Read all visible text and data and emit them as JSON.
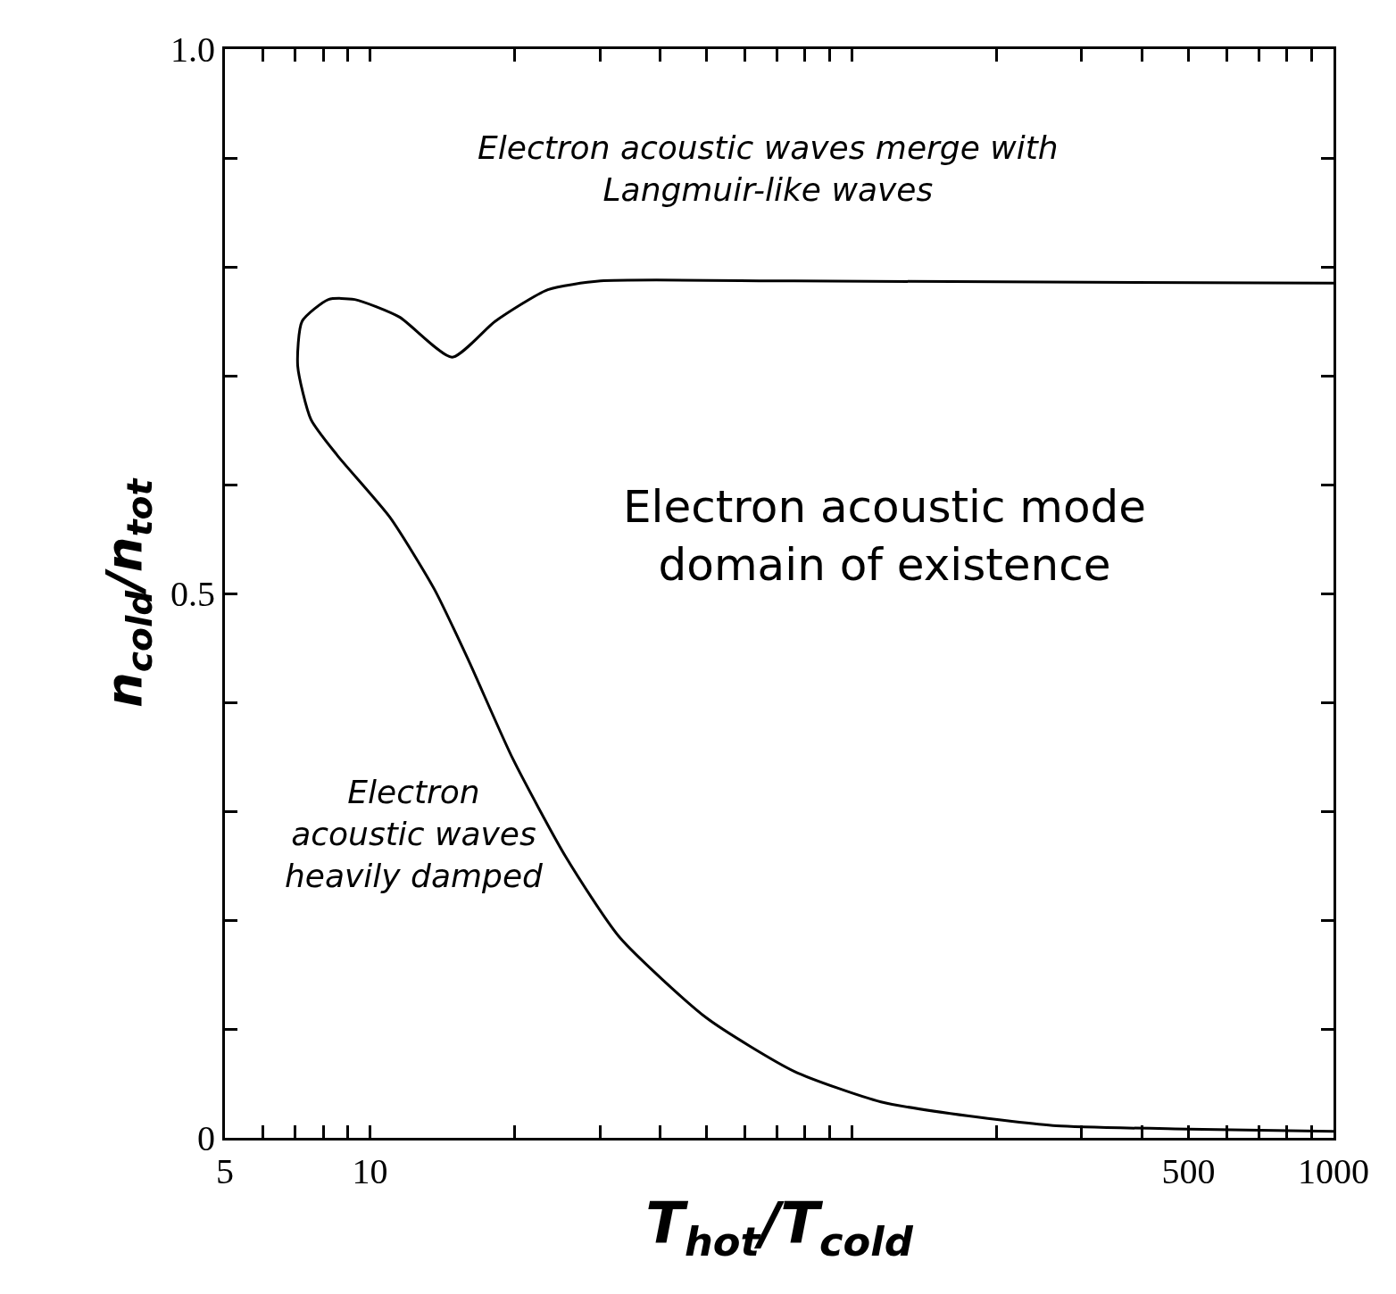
{
  "chart_data": {
    "type": "line",
    "xlabel": "T$_{hot}$/T$_{cold}$",
    "ylabel": "n$_{cold}$/n$_{tot}$",
    "log": "x",
    "xlim": [
      5,
      1000
    ],
    "ylim": [
      0,
      1.0
    ],
    "xticks": [
      5,
      {
        "value": 6,
        "label": null
      },
      {
        "value": 7,
        "label": null
      },
      {
        "value": 8,
        "label": null
      },
      {
        "value": 9,
        "label": null
      },
      10,
      {
        "value": 20,
        "label": null
      },
      {
        "value": 30,
        "label": null
      },
      {
        "value": 40,
        "label": null
      },
      {
        "value": 50,
        "label": null
      },
      {
        "value": 60,
        "label": null
      },
      {
        "value": 70,
        "label": null
      },
      {
        "value": 80,
        "label": null
      },
      {
        "value": 90,
        "label": null
      },
      {
        "value": 100,
        "label": null
      },
      {
        "value": 200,
        "label": null
      },
      {
        "value": 300,
        "label": null
      },
      {
        "value": 400,
        "label": null
      },
      500,
      {
        "value": 600,
        "label": null
      },
      {
        "value": 700,
        "label": null
      },
      {
        "value": 800,
        "label": null
      },
      {
        "value": 900,
        "label": null
      },
      1000
    ],
    "yticks": [
      0,
      {
        "value": 0.1,
        "label": null
      },
      {
        "value": 0.2,
        "label": null
      },
      {
        "value": 0.3,
        "label": null
      },
      {
        "value": 0.4,
        "label": null
      },
      0.5,
      {
        "value": 0.6,
        "label": null
      },
      {
        "value": 0.7,
        "label": null
      },
      {
        "value": 0.8,
        "label": null
      },
      {
        "value": 0.9,
        "label": null
      },
      {
        "value": 1.0,
        "label": "1.0"
      }
    ],
    "marker": "none",
    "line_style": "solid",
    "series": [
      {
        "color": "#000000",
        "x": [
          1000,
          500,
          266,
          175,
          115,
          76,
          50,
          33,
          25.5,
          19.8,
          16.0,
          13.6,
          11.0,
          8.55,
          7.54,
          7.08,
          7.23,
          8.2,
          9.3,
          11.5,
          14.8,
          18.2,
          23.4,
          30.1,
          76,
          1000
        ],
        "values": [
          0.006,
          0.008,
          0.011,
          0.02,
          0.033,
          0.061,
          0.11,
          0.184,
          0.258,
          0.348,
          0.439,
          0.504,
          0.57,
          0.627,
          0.66,
          0.709,
          0.75,
          0.77,
          0.77,
          0.754,
          0.717,
          0.75,
          0.779,
          0.787,
          0.787,
          0.785
        ]
      }
    ],
    "annotations": [
      "Electron acoustic waves merge with\nLangmuir-like waves",
      "Electron acoustic mode\ndomain of existence",
      "Electron\nacoustic waves\nheavily damped"
    ]
  }
}
